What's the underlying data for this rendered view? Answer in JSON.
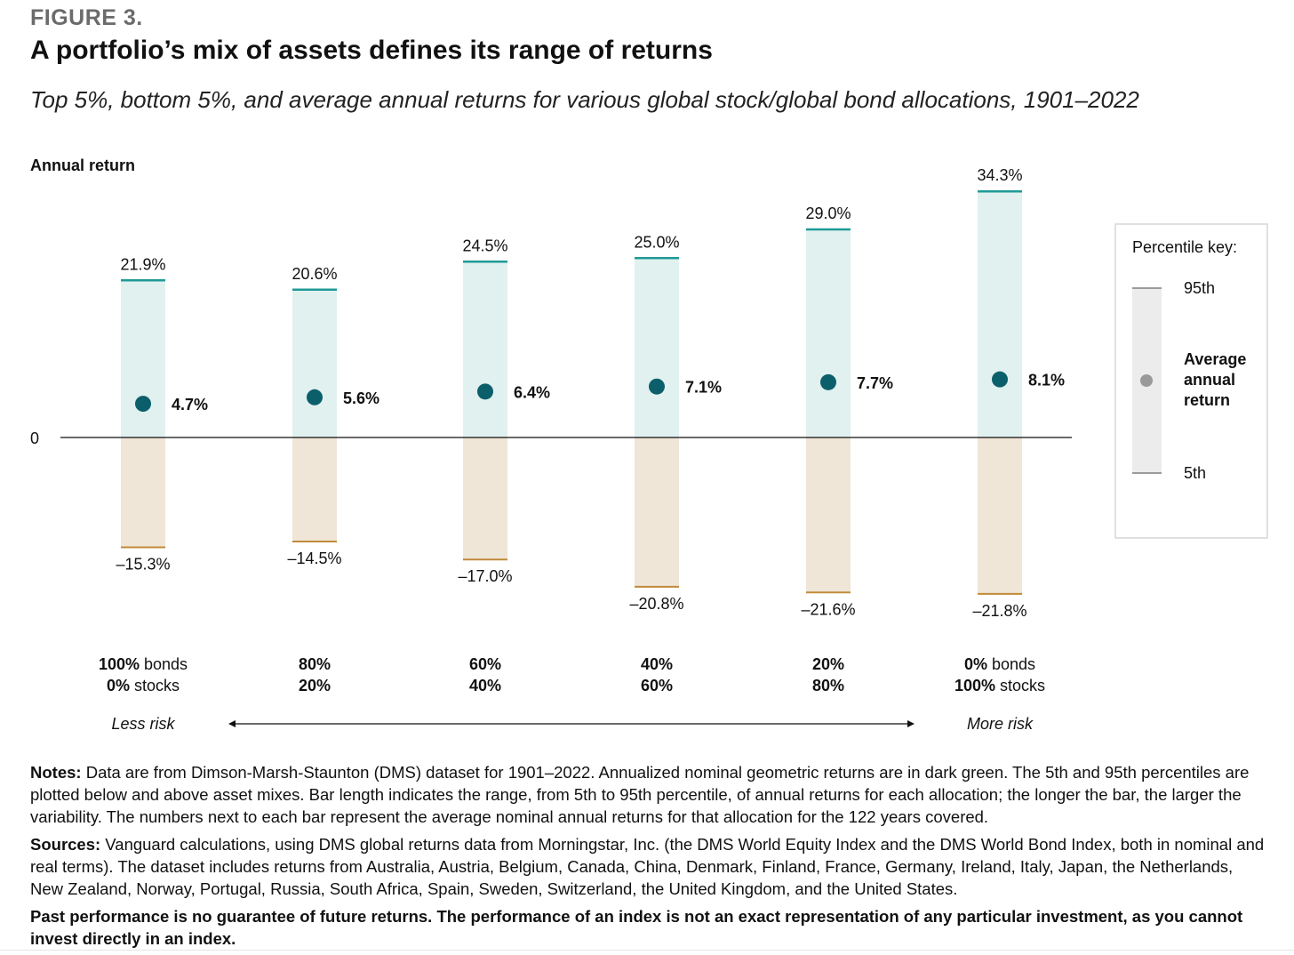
{
  "header": {
    "figure_label": "FIGURE 3.",
    "title": "A portfolio’s mix of assets defines its range of returns",
    "subtitle": "Top 5%, bottom 5%, and average annual returns for various global stock/global bond allocations, 1901–2022"
  },
  "chart_data": {
    "type": "range-bar",
    "title": "A portfolio’s mix of assets defines its range of returns",
    "ylabel": "Annual return",
    "zero_label": "0",
    "ylim": [
      -25,
      38
    ],
    "categories": [
      {
        "bonds_pct": "100%",
        "bonds_word": " bonds",
        "stocks_pct": "0%",
        "stocks_word": " stocks"
      },
      {
        "bonds_pct": "80%",
        "bonds_word": "",
        "stocks_pct": "20%",
        "stocks_word": ""
      },
      {
        "bonds_pct": "60%",
        "bonds_word": "",
        "stocks_pct": "40%",
        "stocks_word": ""
      },
      {
        "bonds_pct": "40%",
        "bonds_word": "",
        "stocks_pct": "60%",
        "stocks_word": ""
      },
      {
        "bonds_pct": "20%",
        "bonds_word": "",
        "stocks_pct": "80%",
        "stocks_word": ""
      },
      {
        "bonds_pct": "0%",
        "bonds_word": " bonds",
        "stocks_pct": "100%",
        "stocks_word": " stocks"
      }
    ],
    "series": [
      {
        "name": "95th percentile",
        "values": [
          21.9,
          20.6,
          24.5,
          25.0,
          29.0,
          34.3
        ],
        "labels": [
          "21.9%",
          "20.6%",
          "24.5%",
          "25.0%",
          "29.0%",
          "34.3%"
        ]
      },
      {
        "name": "Average annual return",
        "values": [
          4.7,
          5.6,
          6.4,
          7.1,
          7.7,
          8.1
        ],
        "labels": [
          "4.7%",
          "5.6%",
          "6.4%",
          "7.1%",
          "7.7%",
          "8.1%"
        ]
      },
      {
        "name": "5th percentile",
        "values": [
          -15.3,
          -14.5,
          -17.0,
          -20.8,
          -21.6,
          -21.8
        ],
        "labels": [
          "–15.3%",
          "–14.5%",
          "–17.0%",
          "–20.8%",
          "–21.6%",
          "–21.8%"
        ]
      }
    ],
    "risk_axis": {
      "left_label": "Less risk",
      "right_label": "More risk"
    },
    "legend": {
      "title": "Percentile key:",
      "top_label": "95th",
      "middle_label": [
        "Average",
        "annual",
        "return"
      ],
      "bottom_label": "5th",
      "placement": "right"
    },
    "colors": {
      "upper_fill": "#e1f1f0",
      "lower_fill": "#efe6d8",
      "upper_line": "#1f9a96",
      "lower_line": "#c18a3a",
      "dot": "#0b5f6b",
      "legend_bar": "#ececec",
      "legend_dot": "#9a9a9a"
    }
  },
  "notes": {
    "notes_label": "Notes:",
    "notes_text": " Data are from Dimson-Marsh-Staunton (DMS) dataset for 1901–2022. Annualized nominal geometric returns are in dark green. The 5th and 95th percentiles are plotted below and above asset mixes. Bar length indicates the range, from 5th to 95th percentile, of annual returns for each allocation; the longer the bar, the larger the variability. The numbers next to each bar represent the average nominal annual returns for that allocation for the 122 years covered.",
    "sources_label": "Sources:",
    "sources_text": " Vanguard calculations, using DMS global returns data from Morningstar, Inc. (the DMS World Equity Index and the DMS World Bond Index, both in nominal and real terms). The dataset includes returns from Australia, Austria, Belgium, Canada, China, Denmark, Finland, France, Germany, Ireland, Italy, Japan, the Netherlands, New Zealand, Norway, Portugal, Russia, South Africa, Spain, Sweden, Switzerland, the United Kingdom, and the United States.",
    "disclaimer": "Past performance is no guarantee of future returns. The performance of an index is not an exact representation of any particular investment, as you cannot invest directly in an index."
  }
}
